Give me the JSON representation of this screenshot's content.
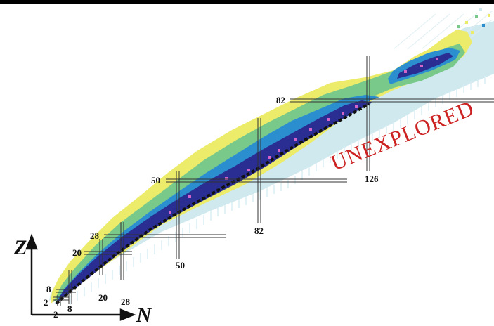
{
  "figure": {
    "axes": {
      "vertical": "Z",
      "horizontal": "N"
    },
    "region_label": "UNEXPLORED",
    "magic_labels": {
      "z2": "2",
      "z8": "8",
      "z20": "20",
      "z28": "28",
      "z50": "50",
      "z82": "82",
      "n2": "2",
      "n8": "8",
      "n20": "20",
      "n28": "28",
      "n50": "50",
      "n82": "82",
      "n126": "126"
    },
    "colors": {
      "predicted": "#cfe9ef",
      "yellow": "#ecec6a",
      "green": "#79c98a",
      "blue": "#2b8fcf",
      "navy": "#2a2d92",
      "magenta": "#d465c8",
      "black": "#111111",
      "label": "#cc2222"
    }
  }
}
